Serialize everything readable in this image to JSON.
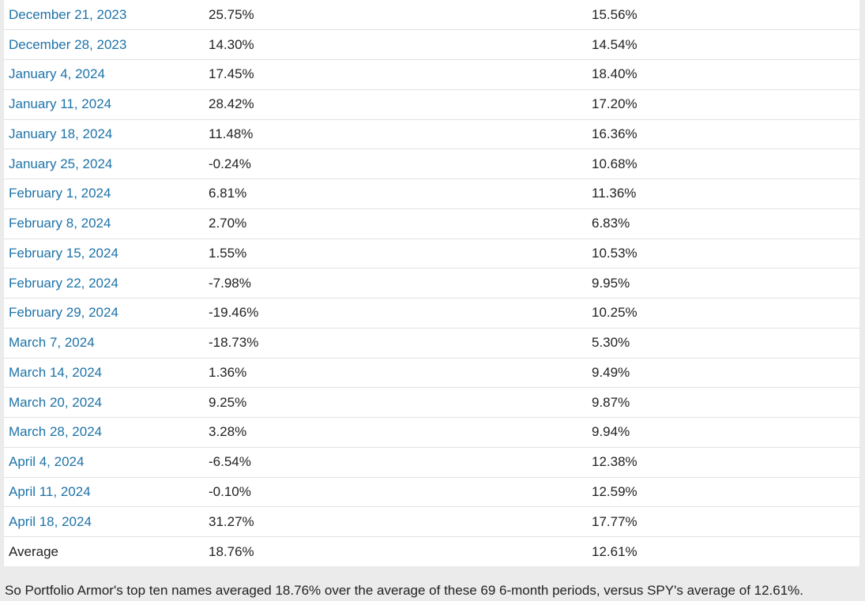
{
  "table": {
    "rows": [
      {
        "date": "December 21, 2023",
        "portfolio": "25.75%",
        "spy": "15.56%"
      },
      {
        "date": "December 28, 2023",
        "portfolio": "14.30%",
        "spy": "14.54%"
      },
      {
        "date": "January 4, 2024",
        "portfolio": "17.45%",
        "spy": "18.40%"
      },
      {
        "date": "January 11, 2024",
        "portfolio": "28.42%",
        "spy": "17.20%"
      },
      {
        "date": "January 18, 2024",
        "portfolio": "11.48%",
        "spy": "16.36%"
      },
      {
        "date": "January 25, 2024",
        "portfolio": "-0.24%",
        "spy": "10.68%"
      },
      {
        "date": "February 1, 2024",
        "portfolio": "6.81%",
        "spy": "11.36%"
      },
      {
        "date": "February 8, 2024",
        "portfolio": "2.70%",
        "spy": "6.83%"
      },
      {
        "date": "February 15, 2024",
        "portfolio": "1.55%",
        "spy": "10.53%"
      },
      {
        "date": "February 22, 2024",
        "portfolio": "-7.98%",
        "spy": "9.95%"
      },
      {
        "date": "February 29, 2024",
        "portfolio": "-19.46%",
        "spy": "10.25%"
      },
      {
        "date": "March 7, 2024",
        "portfolio": "-18.73%",
        "spy": "5.30%"
      },
      {
        "date": "March 14, 2024",
        "portfolio": "1.36%",
        "spy": "9.49%"
      },
      {
        "date": "March 20, 2024",
        "portfolio": "9.25%",
        "spy": "9.87%"
      },
      {
        "date": "March 28, 2024",
        "portfolio": "3.28%",
        "spy": "9.94%"
      },
      {
        "date": "April 4, 2024",
        "portfolio": "-6.54%",
        "spy": "12.38%"
      },
      {
        "date": "April 11, 2024",
        "portfolio": "-0.10%",
        "spy": "12.59%"
      },
      {
        "date": "April 18, 2024",
        "portfolio": "31.27%",
        "spy": "17.77%"
      }
    ],
    "average": {
      "label": "Average",
      "portfolio": "18.76%",
      "spy": "12.61%"
    }
  },
  "summary": "So Portfolio Armor's top ten names averaged 18.76% over the average of these 69 6-month periods, versus SPY's average of 12.61%.",
  "colors": {
    "link": "#1e73a8",
    "background": "#ebebeb",
    "table_background": "#ffffff",
    "row_border": "#e1e1e1"
  }
}
